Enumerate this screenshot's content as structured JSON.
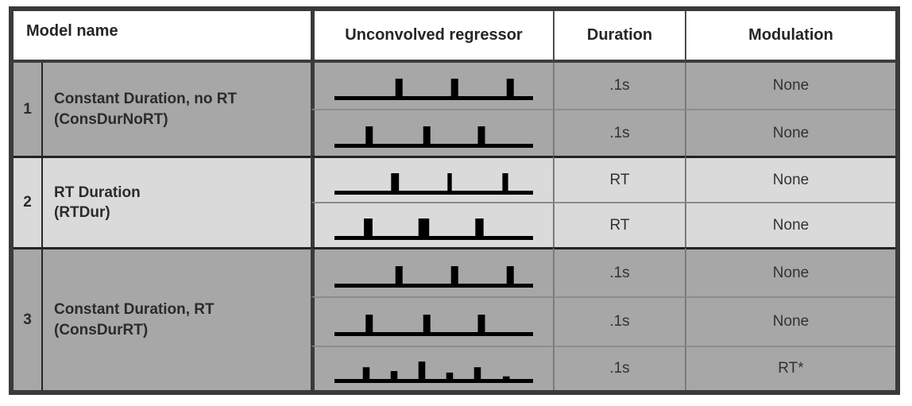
{
  "colors": {
    "row_dark_fill": "#a7a7a7",
    "row_light_fill": "#dadada",
    "outer_border": "#3a3a3a",
    "model_separator": "#232323",
    "subrow_divider": "#8c8c8c",
    "text": "#2b2b2b",
    "pulse": "#000000"
  },
  "table": {
    "headers": {
      "model_name": "Model name",
      "regressor": "Unconvolved regressor",
      "duration": "Duration",
      "modulation": "Modulation"
    },
    "models": [
      {
        "number": "1",
        "name_line1": "Constant Duration, no RT",
        "name_line2": "(ConsDurNoRT)",
        "shade": "dark",
        "rows": [
          {
            "duration": ".1s",
            "modulation": "None",
            "pulses": [
              {
                "x": 0.325,
                "w": 1,
                "h": 1
              },
              {
                "x": 0.605,
                "w": 1,
                "h": 1
              },
              {
                "x": 0.885,
                "w": 1,
                "h": 1
              }
            ]
          },
          {
            "duration": ".1s",
            "modulation": "None",
            "pulses": [
              {
                "x": 0.175,
                "w": 1,
                "h": 1
              },
              {
                "x": 0.465,
                "w": 1,
                "h": 1
              },
              {
                "x": 0.74,
                "w": 1,
                "h": 1
              }
            ]
          }
        ]
      },
      {
        "number": "2",
        "name_line1": "RT Duration",
        "name_line2": "(RTDur)",
        "shade": "light",
        "rows": [
          {
            "duration": "RT",
            "modulation": "None",
            "pulses": [
              {
                "x": 0.305,
                "w": 1.1,
                "h": 1
              },
              {
                "x": 0.58,
                "w": 0.6,
                "h": 1
              },
              {
                "x": 0.86,
                "w": 0.8,
                "h": 1
              }
            ]
          },
          {
            "duration": "RT",
            "modulation": "None",
            "pulses": [
              {
                "x": 0.17,
                "w": 1.2,
                "h": 1
              },
              {
                "x": 0.45,
                "w": 1.5,
                "h": 1
              },
              {
                "x": 0.73,
                "w": 1.15,
                "h": 1
              }
            ]
          }
        ]
      },
      {
        "number": "3",
        "name_line1": "Constant Duration, RT",
        "name_line2": "(ConsDurRT)",
        "shade": "dark",
        "rows": [
          {
            "duration": ".1s",
            "modulation": "None",
            "pulses": [
              {
                "x": 0.325,
                "w": 1,
                "h": 1
              },
              {
                "x": 0.605,
                "w": 1,
                "h": 1
              },
              {
                "x": 0.885,
                "w": 1,
                "h": 1
              }
            ]
          },
          {
            "duration": ".1s",
            "modulation": "None",
            "pulses": [
              {
                "x": 0.175,
                "w": 1,
                "h": 1
              },
              {
                "x": 0.465,
                "w": 1,
                "h": 1
              },
              {
                "x": 0.74,
                "w": 1,
                "h": 1
              }
            ]
          },
          {
            "duration": ".1s",
            "modulation": "RT*",
            "pulses": [
              {
                "x": 0.16,
                "w": 0.95,
                "h": 0.7
              },
              {
                "x": 0.3,
                "w": 0.95,
                "h": 0.5
              },
              {
                "x": 0.44,
                "w": 0.95,
                "h": 1.0
              },
              {
                "x": 0.58,
                "w": 0.95,
                "h": 0.42
              },
              {
                "x": 0.72,
                "w": 0.95,
                "h": 0.7
              },
              {
                "x": 0.865,
                "w": 0.95,
                "h": 0.22
              }
            ]
          }
        ]
      }
    ]
  }
}
